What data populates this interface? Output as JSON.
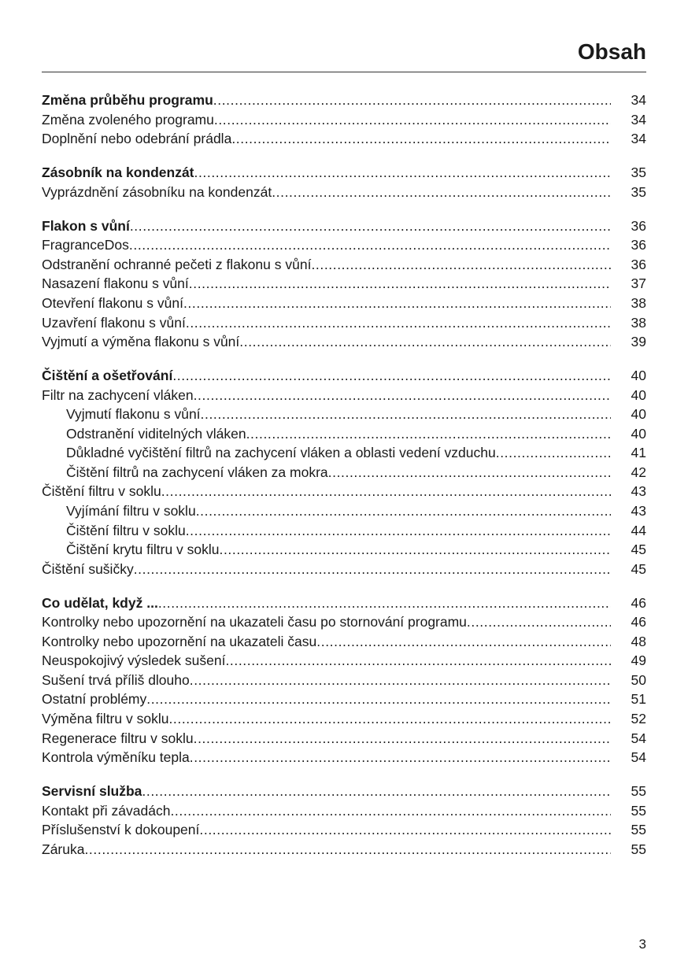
{
  "header": {
    "title": "Obsah"
  },
  "toc": [
    [
      {
        "text": "Změna průběhu programu",
        "page": "34",
        "bold": true
      },
      {
        "text": "Změna zvoleného programu",
        "page": "34"
      },
      {
        "text": "Doplnění nebo odebrání prádla",
        "page": "34"
      }
    ],
    [
      {
        "text": "Zásobník na kondenzát",
        "page": "35",
        "bold": true
      },
      {
        "text": "Vyprázdnění zásobníku na kondenzát",
        "page": "35"
      }
    ],
    [
      {
        "text": "Flakon s vůní",
        "page": "36",
        "bold": true
      },
      {
        "text": "FragranceDos",
        "page": "36"
      },
      {
        "text": "Odstranění ochranné pečeti z flakonu s vůní",
        "page": "36"
      },
      {
        "text": "Nasazení flakonu s vůní",
        "page": "37"
      },
      {
        "text": "Otevření flakonu s vůní",
        "page": "38"
      },
      {
        "text": "Uzavření flakonu s vůní",
        "page": "38"
      },
      {
        "text": "Vyjmutí a výměna flakonu s vůní",
        "page": "39"
      }
    ],
    [
      {
        "text": "Čištění a ošetřování",
        "page": "40",
        "bold": true
      },
      {
        "text": "Filtr na zachycení vláken",
        "page": "40"
      },
      {
        "text": "Vyjmutí flakonu s vůní",
        "page": "40",
        "indent": true
      },
      {
        "text": "Odstranění viditelných vláken",
        "page": "40",
        "indent": true
      },
      {
        "text": "Důkladné vyčištění filtrů na zachycení vláken a oblasti vedení vzduchu",
        "page": "41",
        "indent": true
      },
      {
        "text": "Čištění filtrů na zachycení vláken za mokra",
        "page": "42",
        "indent": true
      },
      {
        "text": "Čištění filtru v soklu",
        "page": "43"
      },
      {
        "text": "Vyjímání filtru v soklu",
        "page": "43",
        "indent": true
      },
      {
        "text": "Čištění filtru v soklu",
        "page": "44",
        "indent": true
      },
      {
        "text": "Čištění krytu filtru v soklu",
        "page": "45",
        "indent": true
      },
      {
        "text": "Čištění sušičky",
        "page": "45"
      }
    ],
    [
      {
        "text": "Co udělat, když ...",
        "page": "46",
        "bold": true
      },
      {
        "text": "Kontrolky nebo upozornění na ukazateli času po stornování programu",
        "page": "46"
      },
      {
        "text": "Kontrolky nebo upozornění na ukazateli času",
        "page": "48"
      },
      {
        "text": "Neuspokojivý výsledek sušení",
        "page": "49"
      },
      {
        "text": "Sušení trvá příliš dlouho",
        "page": "50"
      },
      {
        "text": "Ostatní problémy",
        "page": "51"
      },
      {
        "text": "Výměna filtru v soklu",
        "page": "52"
      },
      {
        "text": "Regenerace filtru v soklu",
        "page": "54"
      },
      {
        "text": "Kontrola výměníku tepla",
        "page": "54"
      }
    ],
    [
      {
        "text": "Servisní služba",
        "page": "55",
        "bold": true
      },
      {
        "text": "Kontakt při závadách",
        "page": "55"
      },
      {
        "text": "Příslušenství k dokoupení",
        "page": "55"
      },
      {
        "text": "Záruka",
        "page": "55"
      }
    ]
  ],
  "footer": {
    "page_number": "3"
  }
}
